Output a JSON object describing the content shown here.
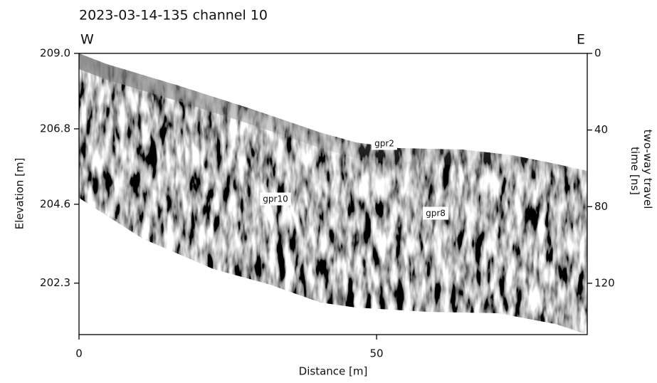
{
  "chart_data": {
    "type": "radargram",
    "title": "2023-03-14-135 channel 10",
    "xlabel": "Distance [m]",
    "ylabel": "Elevation [m]",
    "y2label": [
      "two-way travel",
      "time [ns]"
    ],
    "left_end": "W",
    "right_end": "E",
    "xlim": [
      0,
      85.4
    ],
    "xticks": [
      0,
      50
    ],
    "ylim": [
      200.8,
      209.0
    ],
    "yticks": [
      {
        "value": 209.0,
        "label": "209.0"
      },
      206.8,
      204.6,
      202.3
    ],
    "y2lim": [
      146.8,
      0
    ],
    "y2ticks": [
      0,
      40,
      80,
      120
    ],
    "annotations": [
      "gpr2",
      "gpr10",
      "gpr8"
    ]
  }
}
